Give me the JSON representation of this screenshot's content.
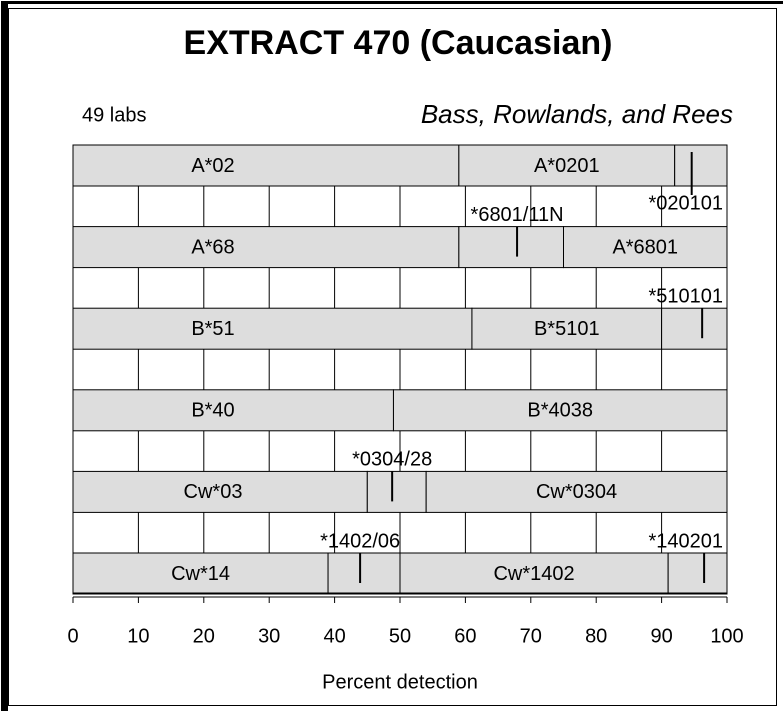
{
  "chart_data": {
    "type": "stacked-bar-horizontal",
    "title": "EXTRACT 470 (Caucasian)",
    "subtitle": "49 labs",
    "author": "Bass, Rowlands, and Rees",
    "xlabel": "Percent detection",
    "xlim": [
      0,
      100
    ],
    "xticks": [
      0,
      10,
      20,
      30,
      40,
      50,
      60,
      70,
      80,
      90,
      100
    ],
    "grid": true,
    "color": "#dddddd",
    "rows": [
      {
        "segments": [
          {
            "name": "A*02",
            "value": 59
          },
          {
            "name": "A*0201",
            "value": 33
          },
          {
            "name": null,
            "value": 8
          }
        ],
        "callouts": [
          {
            "label": "*020101",
            "x": 94.6
          }
        ]
      },
      {
        "segments": [
          {
            "name": "A*68",
            "value": 59
          },
          {
            "name": null,
            "value": 16
          },
          {
            "name": "A*6801",
            "value": 25
          }
        ],
        "callouts": [
          {
            "label": "*6801/11N",
            "x": 67.9
          }
        ]
      },
      {
        "segments": [
          {
            "name": "B*51",
            "value": 61
          },
          {
            "name": "B*5101",
            "value": 29
          },
          {
            "name": null,
            "value": 10
          }
        ],
        "callouts": [
          {
            "label": "*510101",
            "x": 96.2
          }
        ]
      },
      {
        "segments": [
          {
            "name": "B*40",
            "value": 49
          },
          {
            "name": "B*4038",
            "value": 51
          }
        ],
        "callouts": []
      },
      {
        "segments": [
          {
            "name": "Cw*03",
            "value": 45
          },
          {
            "name": null,
            "value": 9
          },
          {
            "name": "Cw*0304",
            "value": 46
          }
        ],
        "callouts": [
          {
            "label": "*0304/28",
            "x": 48.8
          }
        ]
      },
      {
        "segments": [
          {
            "name": "Cw*14",
            "value": 39
          },
          {
            "name": null,
            "value": 11
          },
          {
            "name": "Cw*1402",
            "value": 41
          },
          {
            "name": null,
            "value": 9
          }
        ],
        "callouts": [
          {
            "label": "*1402/06",
            "x": 43.9
          },
          {
            "label": "*140201",
            "x": 96.5
          }
        ]
      }
    ]
  }
}
